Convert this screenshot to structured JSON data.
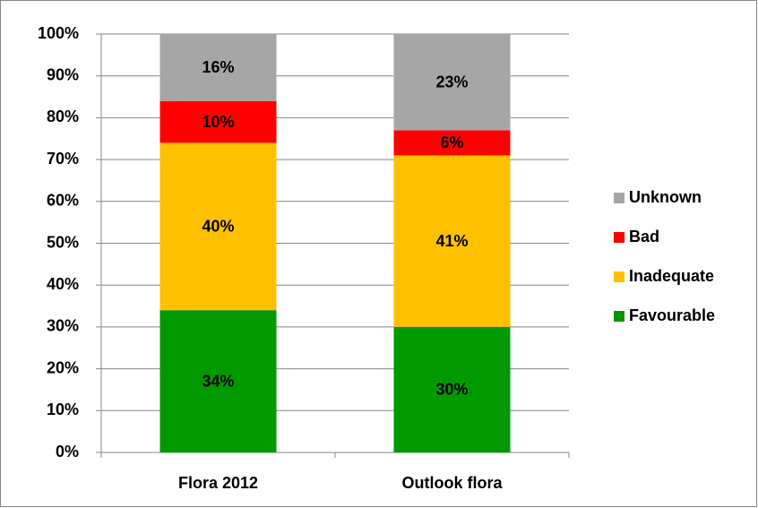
{
  "chart_data": {
    "type": "stacked_bar",
    "categories": [
      "Flora 2012",
      "Outlook flora"
    ],
    "series": [
      {
        "name": "Favourable",
        "color": "#009900",
        "values": [
          34,
          30
        ],
        "value_labels": [
          "34%",
          "30%"
        ]
      },
      {
        "name": "Inadequate",
        "color": "#ffc000",
        "values": [
          40,
          41
        ],
        "value_labels": [
          "40%",
          "41%"
        ]
      },
      {
        "name": "Bad",
        "color": "#ff0000",
        "values": [
          10,
          6
        ],
        "value_labels": [
          "10%",
          "6%"
        ]
      },
      {
        "name": "Unknown",
        "color": "#a6a6a6",
        "values": [
          16,
          23
        ],
        "value_labels": [
          "16%",
          "23%"
        ]
      }
    ],
    "ylim": [
      0,
      100
    ],
    "yticks": [
      {
        "value": 0,
        "label": "0%"
      },
      {
        "value": 10,
        "label": "10%"
      },
      {
        "value": 20,
        "label": "20%"
      },
      {
        "value": 30,
        "label": "30%"
      },
      {
        "value": 40,
        "label": "40%"
      },
      {
        "value": 50,
        "label": "50%"
      },
      {
        "value": 60,
        "label": "60%"
      },
      {
        "value": 70,
        "label": "70%"
      },
      {
        "value": 80,
        "label": "80%"
      },
      {
        "value": 90,
        "label": "90%"
      },
      {
        "value": 100,
        "label": "100%"
      }
    ],
    "grid": true,
    "legend": "right"
  }
}
